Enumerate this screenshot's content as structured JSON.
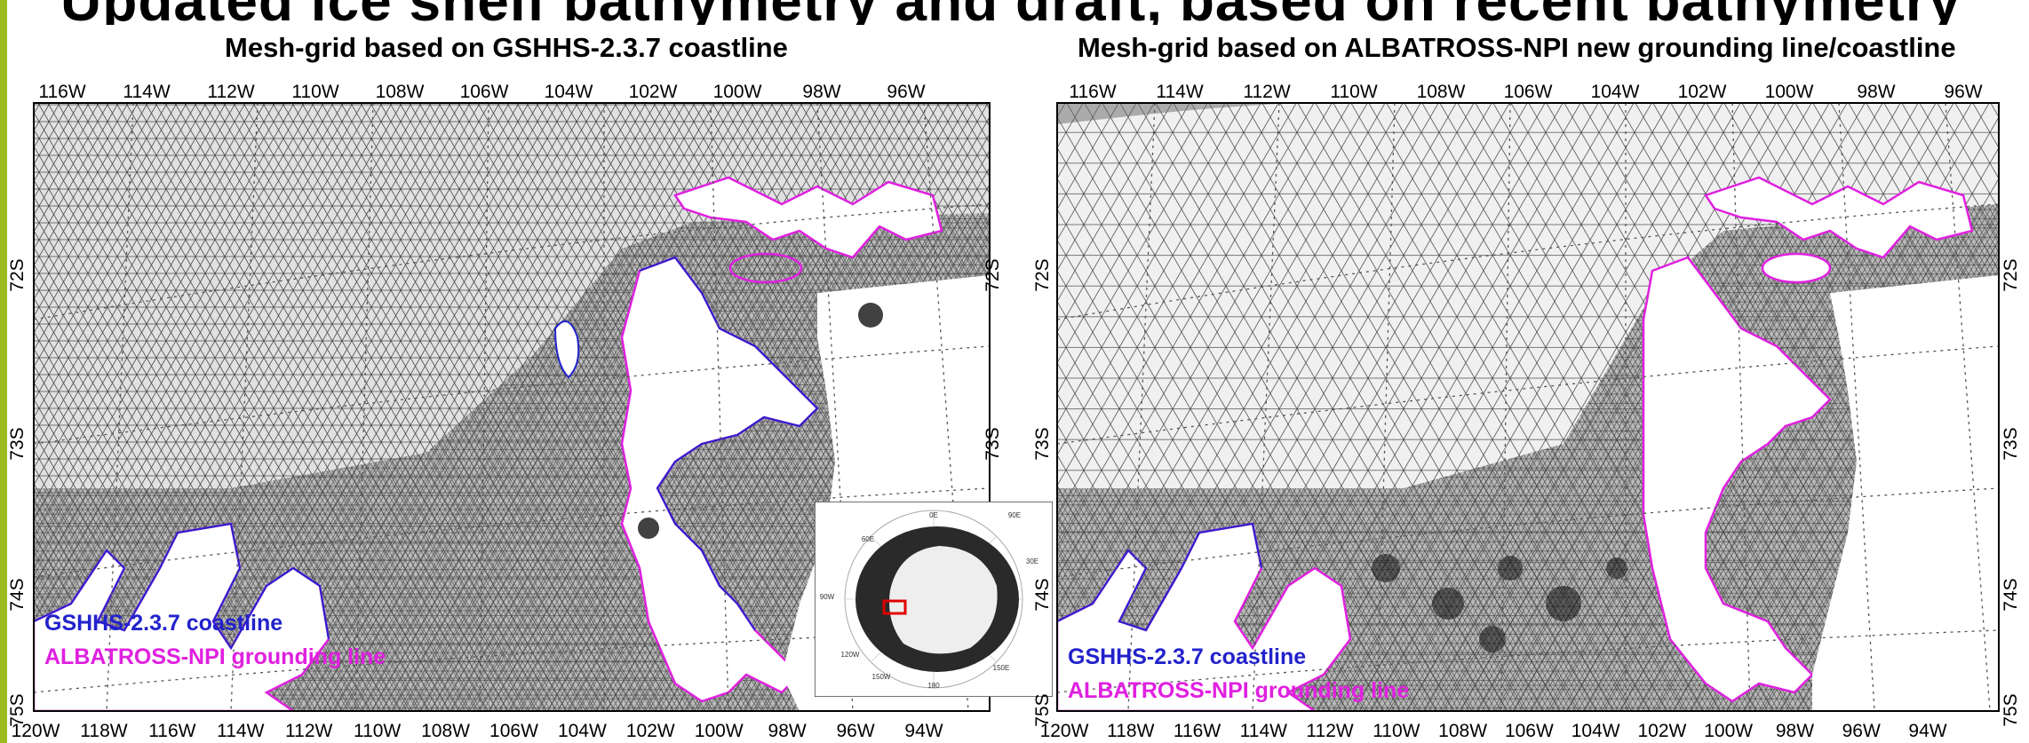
{
  "header": {
    "text": "Updated ice shelf bathymetry and draft, based on recent bathymetry"
  },
  "panels": [
    {
      "title": "Mesh-grid based on GSHHS-2.3.7 coastline",
      "top_ticks": [
        "116W",
        "114W",
        "112W",
        "110W",
        "108W",
        "106W",
        "104W",
        "102W",
        "100W",
        "98W",
        "96W"
      ],
      "bottom_ticks": [
        "120W",
        "118W",
        "116W",
        "114W",
        "112W",
        "110W",
        "108W",
        "106W",
        "104W",
        "102W",
        "100W",
        "98W",
        "96W",
        "94W"
      ],
      "left_ticks": [
        "72S",
        "73S",
        "74S",
        "75S"
      ],
      "right_ticks": [
        "72S",
        "73S"
      ],
      "legend": {
        "coastline": "GSHHS-2.3.7 coastline",
        "grounding": "ALBATROSS-NPI grounding line"
      }
    },
    {
      "title": "Mesh-grid based on ALBATROSS-NPI new grounding line/coastline",
      "top_ticks": [
        "116W",
        "114W",
        "112W",
        "110W",
        "108W",
        "106W",
        "104W",
        "102W",
        "100W",
        "98W",
        "96W"
      ],
      "bottom_ticks": [
        "120W",
        "118W",
        "116W",
        "114W",
        "112W",
        "110W",
        "108W",
        "106W",
        "104W",
        "102W",
        "100W",
        "98W",
        "96W",
        "94W"
      ],
      "left_ticks": [
        "72S",
        "73S",
        "74S",
        "75S"
      ],
      "right_ticks": [
        "72S",
        "73S",
        "74S",
        "75S"
      ],
      "legend": {
        "coastline": "GSHHS-2.3.7 coastline",
        "grounding": "ALBATROSS-NPI grounding line"
      }
    }
  ],
  "inset": {
    "labels": [
      "90E",
      "0E",
      "60E",
      "90W",
      "120W",
      "180",
      "150E",
      "150W",
      "30E"
    ]
  },
  "colors": {
    "accent": "#9bbb1f",
    "coastline": "#2222cc",
    "grounding": "#e020e0",
    "mesh": "#222222",
    "highlight": "#e00000"
  }
}
